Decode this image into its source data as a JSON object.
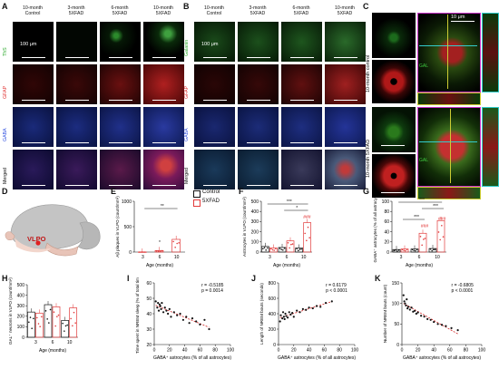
{
  "panel_letters": {
    "A": "A",
    "B": "B",
    "C": "C",
    "D": "D",
    "E": "E",
    "F": "F",
    "G": "G",
    "H": "H",
    "I": "I",
    "J": "J",
    "K": "K"
  },
  "panelA": {
    "columns": [
      {
        "line1": "10-month",
        "line2": "Control"
      },
      {
        "line1": "3-month",
        "line2": "5XFAD"
      },
      {
        "line1": "6-month",
        "line2": "5XFAD"
      },
      {
        "line1": "10-month",
        "line2": "5XFAD"
      }
    ],
    "rows": [
      "ThS",
      "GFAP",
      "GABA",
      "Merged"
    ],
    "scale": "100 μm"
  },
  "panelB": {
    "columns": [
      {
        "line1": "10-month",
        "line2": "Control"
      },
      {
        "line1": "3-month",
        "line2": "5XFAD"
      },
      {
        "line1": "6-month",
        "line2": "5XFAD"
      },
      {
        "line1": "10-month",
        "line2": "5XFAD"
      }
    ],
    "rows": [
      "Galanin",
      "GFAP",
      "GABA",
      "Merged"
    ],
    "scale": "100 μm"
  },
  "panelC": {
    "scale": "10 μm",
    "row1": "10-month control",
    "row2": "10-month 5XFAD",
    "gal1": "GAL",
    "gal2": "GAL"
  },
  "panelD": {
    "label": "VLPO"
  },
  "legend": {
    "control": "Control",
    "fad": "5XFAD"
  },
  "chart_data": [
    {
      "id": "E",
      "type": "bar",
      "ylabel": "Aβ plaques in VLPO (count/mm²)",
      "xlabel": "Age (months)",
      "categories": [
        "3",
        "6",
        "10"
      ],
      "ylim": [
        0,
        1000
      ],
      "yticks": [
        "0",
        "500",
        "1000"
      ],
      "series": [
        {
          "name": "5XFAD",
          "values": [
            0,
            30,
            250
          ]
        }
      ],
      "sig": [
        "*",
        "**"
      ]
    },
    {
      "id": "F",
      "type": "bar",
      "ylabel": "Astrocytes in VLPO (count/mm²)",
      "xlabel": "Age (months)",
      "categories": [
        "3",
        "6",
        "10"
      ],
      "ylim": [
        0,
        500
      ],
      "yticks": [
        "0",
        "100",
        "200",
        "300",
        "400",
        "500"
      ],
      "series": [
        {
          "name": "Control",
          "values": [
            55,
            45,
            40
          ]
        },
        {
          "name": "5XFAD",
          "values": [
            40,
            110,
            290
          ]
        }
      ],
      "sig": [
        "***",
        "*",
        "###"
      ]
    },
    {
      "id": "G",
      "type": "bar",
      "ylabel": "GABA⁺ astrocytes (% of all astrocytes)",
      "xlabel": "Age (months)",
      "categories": [
        "3",
        "6",
        "10"
      ],
      "ylim": [
        0,
        100
      ],
      "yticks": [
        "0",
        "20",
        "40",
        "60",
        "80",
        "100"
      ],
      "series": [
        {
          "name": "Control",
          "values": [
            5,
            6,
            7
          ]
        },
        {
          "name": "5XFAD",
          "values": [
            6,
            37,
            62
          ]
        }
      ],
      "sig": [
        "***",
        "***",
        "***",
        "###",
        "###"
      ]
    },
    {
      "id": "H",
      "type": "bar",
      "ylabel": "GAL⁺ neurons in VLPO (count/mm²)",
      "xlabel": "Age (months)",
      "categories": [
        "3",
        "6",
        "10"
      ],
      "ylim": [
        0,
        500
      ],
      "yticks": [
        "0",
        "100",
        "200",
        "300",
        "400",
        "500"
      ],
      "series": [
        {
          "name": "Control",
          "values": [
            240,
            310,
            160
          ]
        },
        {
          "name": "5XFAD",
          "values": [
            230,
            290,
            280
          ]
        }
      ]
    },
    {
      "id": "I",
      "type": "scatter",
      "ylabel": "Time spent in NREM sleep (% of total time)",
      "xlabel": "GABA⁺ astrocytes (% of all astrocytes)",
      "xlim": [
        0,
        100
      ],
      "ylim": [
        20,
        60
      ],
      "xticks": [
        "0",
        "20",
        "40",
        "60",
        "80",
        "100"
      ],
      "yticks": [
        "20",
        "30",
        "40",
        "50",
        "60"
      ],
      "stats": {
        "r": "r = -0.5185",
        "p": "p = 0.0014"
      },
      "x": [
        2,
        4,
        5,
        6,
        7,
        8,
        9,
        10,
        12,
        14,
        16,
        18,
        20,
        22,
        26,
        30,
        34,
        38,
        42,
        46,
        50,
        55,
        60,
        66,
        72
      ],
      "y": [
        48,
        44,
        47,
        42,
        46,
        45,
        43,
        47,
        41,
        44,
        42,
        40,
        43,
        38,
        41,
        39,
        40,
        36,
        38,
        34,
        37,
        35,
        33,
        36,
        30
      ]
    },
    {
      "id": "J",
      "type": "scatter",
      "ylabel": "Length of NREM bouts (seconds)",
      "xlabel": "GABA⁺ astrocytes (% of all astrocytes)",
      "xlim": [
        0,
        100
      ],
      "ylim": [
        0,
        800
      ],
      "xticks": [
        "0",
        "20",
        "40",
        "60",
        "80",
        "100"
      ],
      "yticks": [
        "0",
        "200",
        "400",
        "600",
        "800"
      ],
      "stats": {
        "r": "r = 0.6179",
        "p": "p < 0.0001"
      },
      "x": [
        2,
        3,
        5,
        6,
        7,
        8,
        9,
        10,
        12,
        14,
        16,
        18,
        20,
        24,
        28,
        32,
        36,
        40,
        45,
        50,
        55,
        62,
        70
      ],
      "y": [
        300,
        380,
        340,
        420,
        360,
        330,
        400,
        370,
        350,
        420,
        390,
        410,
        360,
        440,
        420,
        460,
        450,
        480,
        470,
        500,
        490,
        540,
        560
      ]
    },
    {
      "id": "K",
      "type": "scatter",
      "ylabel": "Number of NREM bouts (count)",
      "xlabel": "GABA⁺ astrocytes (% of all astrocytes)",
      "xlim": [
        0,
        100
      ],
      "ylim": [
        0,
        150
      ],
      "xticks": [
        "0",
        "20",
        "40",
        "60",
        "80",
        "100"
      ],
      "yticks": [
        "0",
        "50",
        "100",
        "150"
      ],
      "stats": {
        "r": "r = -0.6805",
        "p": "p < 0.0001"
      },
      "x": [
        2,
        3,
        4,
        5,
        6,
        7,
        8,
        10,
        12,
        14,
        16,
        18,
        20,
        24,
        28,
        32,
        36,
        40,
        45,
        50,
        55,
        62,
        70
      ],
      "y": [
        120,
        105,
        100,
        95,
        110,
        88,
        92,
        85,
        90,
        80,
        82,
        75,
        78,
        70,
        68,
        62,
        60,
        55,
        50,
        48,
        45,
        40,
        35
      ]
    }
  ],
  "colors": {
    "control": "#111111",
    "fad": "#e23a3a",
    "fit": "#d02020"
  }
}
